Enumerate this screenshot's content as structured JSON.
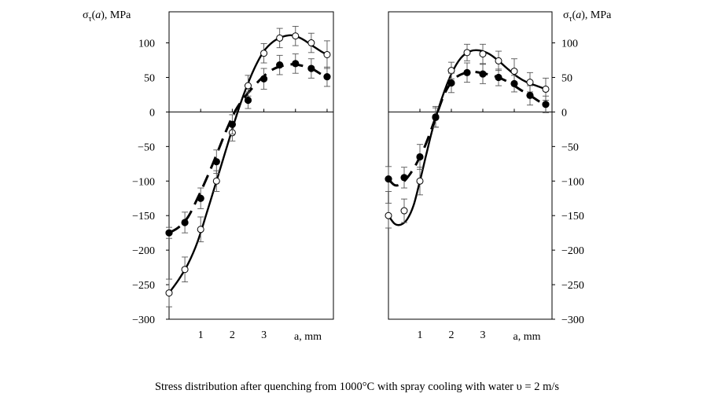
{
  "caption": "Stress distribution after quenching from 1000°C with spray cooling with water υ = 2 m/s",
  "chart_data": [
    {
      "type": "line",
      "name": "left",
      "ylabel_prefix": "σ",
      "ylabel_sub": "τ",
      "ylabel_arg": "a",
      "ylabel_suffix": ", MPa",
      "xlabel": "a, mm",
      "ylim": [
        -300,
        145
      ],
      "xlim": [
        0,
        5.2
      ],
      "yticks": [
        100,
        50,
        0,
        -50,
        -100,
        -150,
        -200,
        -250,
        -300
      ],
      "xticks": [
        1,
        2,
        3
      ],
      "ytick_side": "left",
      "series": [
        {
          "name": "open circles (solid curve)",
          "marker": "open-circle",
          "style": "solid",
          "x": [
            0.0,
            0.5,
            1.0,
            1.5,
            2.0,
            2.5,
            3.0,
            3.5,
            4.0,
            4.5,
            5.0
          ],
          "y": [
            -262,
            -228,
            -170,
            -100,
            -30,
            38,
            85,
            107,
            110,
            100,
            83
          ],
          "err": [
            20,
            18,
            18,
            15,
            12,
            15,
            14,
            14,
            14,
            14,
            20
          ],
          "curve_x": [
            0.0,
            0.3,
            0.6,
            0.9,
            1.2,
            1.5,
            1.8,
            2.1,
            2.4,
            2.7,
            3.0,
            3.3,
            3.6,
            3.9,
            4.2,
            4.5,
            4.8,
            5.0
          ],
          "curve_y": [
            -262,
            -243,
            -220,
            -188,
            -145,
            -100,
            -55,
            -10,
            30,
            63,
            88,
            102,
            109,
            111,
            106,
            97,
            88,
            83
          ]
        },
        {
          "name": "filled circles (dashed curve)",
          "marker": "filled-circle",
          "style": "dashed",
          "x": [
            0.0,
            0.5,
            1.0,
            1.5,
            2.0,
            2.5,
            3.0,
            3.5,
            4.0,
            4.5,
            5.0
          ],
          "y": [
            -175,
            -160,
            -125,
            -72,
            -18,
            17,
            48,
            68,
            70,
            63,
            51
          ],
          "err": [
            8,
            15,
            15,
            17,
            14,
            12,
            15,
            14,
            14,
            14,
            14
          ],
          "curve_x": [
            0.0,
            0.3,
            0.6,
            0.9,
            1.2,
            1.5,
            1.8,
            2.1,
            2.4,
            2.7,
            3.0,
            3.3,
            3.6,
            3.9,
            4.2,
            4.5,
            4.8
          ],
          "curve_y": [
            -175,
            -167,
            -152,
            -125,
            -95,
            -62,
            -28,
            2,
            22,
            38,
            52,
            62,
            67,
            69,
            67,
            63,
            55
          ]
        }
      ]
    },
    {
      "type": "line",
      "name": "right",
      "ylabel_prefix": "σ",
      "ylabel_sub": "τ",
      "ylabel_arg": "a",
      "ylabel_suffix": ", MPa",
      "xlabel": "a, mm",
      "ylim": [
        -300,
        145
      ],
      "xlim": [
        0,
        5.2
      ],
      "yticks": [
        100,
        50,
        0,
        -50,
        -100,
        -150,
        -200,
        -250,
        -300
      ],
      "xticks": [
        1,
        2,
        3
      ],
      "ytick_side": "right",
      "series": [
        {
          "name": "open circles (solid curve)",
          "marker": "open-circle",
          "style": "solid",
          "x": [
            0.0,
            0.5,
            1.0,
            1.5,
            2.0,
            2.5,
            3.0,
            3.5,
            4.0,
            4.5,
            5.0
          ],
          "y": [
            -150,
            -143,
            -100,
            -7,
            60,
            86,
            84,
            74,
            59,
            43,
            33
          ],
          "err": [
            18,
            17,
            20,
            15,
            12,
            12,
            14,
            14,
            18,
            14,
            16
          ],
          "curve_x": [
            0.0,
            0.2,
            0.4,
            0.6,
            0.8,
            1.0,
            1.2,
            1.4,
            1.7,
            2.0,
            2.3,
            2.6,
            2.9,
            3.2,
            3.5,
            3.8,
            4.1,
            4.4,
            4.7,
            5.0
          ],
          "curve_y": [
            -150,
            -162,
            -163,
            -155,
            -135,
            -100,
            -62,
            -25,
            20,
            55,
            78,
            88,
            89,
            84,
            74,
            62,
            51,
            43,
            38,
            33
          ]
        },
        {
          "name": "filled circles (dashed curve)",
          "marker": "filled-circle",
          "style": "dashed",
          "x": [
            0.0,
            0.5,
            1.0,
            1.5,
            2.0,
            2.5,
            3.0,
            3.5,
            4.0,
            4.5,
            5.0
          ],
          "y": [
            -97,
            -95,
            -65,
            -8,
            42,
            57,
            55,
            50,
            41,
            24,
            11
          ],
          "err": [
            18,
            15,
            18,
            14,
            14,
            14,
            14,
            12,
            12,
            14,
            12
          ],
          "curve_x": [
            0.0,
            0.2,
            0.4,
            0.6,
            0.8,
            1.0,
            1.2,
            1.5,
            1.8,
            2.1,
            2.4,
            2.7,
            3.0,
            3.3,
            3.6,
            3.9,
            4.2,
            4.5,
            4.8,
            5.0
          ],
          "curve_y": [
            -97,
            -106,
            -104,
            -95,
            -82,
            -65,
            -45,
            -8,
            28,
            48,
            56,
            58,
            56,
            53,
            48,
            41,
            32,
            24,
            15,
            11
          ]
        }
      ]
    }
  ]
}
